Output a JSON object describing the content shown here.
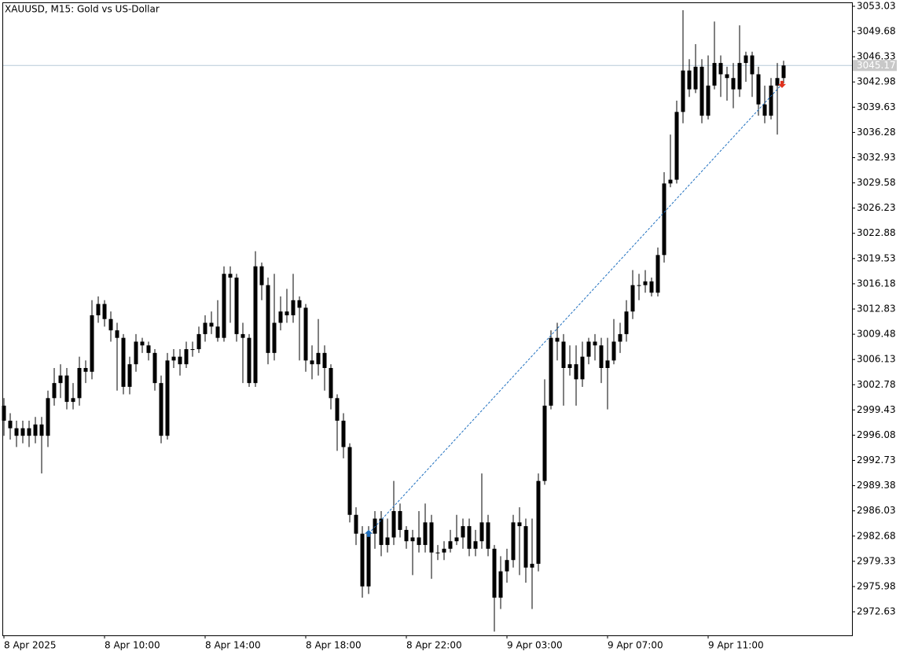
{
  "chart_data": {
    "type": "candlestick",
    "title": "XAUUSD, M15:  Gold vs US-Dollar",
    "color": "#000000",
    "categories": [
      "8 Apr 2025",
      null,
      null,
      null,
      null,
      null,
      null,
      null,
      null,
      null,
      null,
      null,
      null,
      null,
      null,
      null,
      "8 Apr 10:00",
      null,
      null,
      null,
      null,
      null,
      null,
      null,
      null,
      null,
      null,
      null,
      null,
      null,
      null,
      null,
      "8 Apr 14:00",
      null,
      null,
      null,
      null,
      null,
      null,
      null,
      null,
      null,
      null,
      null,
      null,
      null,
      null,
      null,
      "8 Apr 18:00",
      null,
      null,
      null,
      null,
      null,
      null,
      null,
      null,
      null,
      null,
      null,
      null,
      null,
      null,
      null,
      "8 Apr 22:00",
      null,
      null,
      null,
      null,
      null,
      null,
      null,
      null,
      null,
      null,
      null,
      null,
      null,
      null,
      null,
      "9 Apr 03:00",
      null,
      null,
      null,
      null,
      null,
      null,
      null,
      null,
      null,
      null,
      null,
      null,
      null,
      null,
      null,
      "9 Apr 07:00",
      null,
      null,
      null,
      null,
      null,
      null,
      null,
      null,
      null,
      null,
      null,
      null,
      null,
      null,
      null,
      "9 Apr 11:00",
      null,
      null,
      null,
      null,
      null,
      null,
      null,
      null,
      null,
      null,
      null,
      null
    ],
    "open": [
      3000,
      2998,
      2997,
      2996,
      2997,
      2996,
      2997.5,
      2996,
      3001,
      3003,
      3004,
      3000.5,
      3001,
      3005,
      3004.5,
      3012,
      3013.5,
      3011.5,
      3010,
      3009,
      3002.5,
      3005.5,
      3008.5,
      3008,
      3007,
      3003,
      2996,
      3006,
      3006.5,
      3005.5,
      3007.5,
      3007.5,
      3009.5,
      3011,
      3010.5,
      3009,
      3017.5,
      3017,
      3009.5,
      3009,
      3003,
      3018.5,
      3016,
      3007,
      3011,
      3012.5,
      3012,
      3014,
      3013,
      3006,
      3005.5,
      3007,
      3005,
      3001,
      2998,
      2994.5,
      2985.5,
      2983,
      2976,
      2983,
      2985,
      2981.5,
      2982.5,
      2986,
      2983.5,
      2982,
      2982.5,
      2981.5,
      2984.5,
      2980.5,
      2980.5,
      2981,
      2982,
      2982.5,
      2984,
      2981,
      2982,
      2984.5,
      2981,
      2974.5,
      2978,
      2979.5,
      2984.5,
      2984,
      2978.5,
      2979,
      2990,
      3000,
      3009,
      3008.5,
      3005,
      3005.5,
      3003.5,
      3006.5,
      3008.5,
      3008,
      3005,
      3006,
      3008.5,
      3009.5,
      3012.5,
      3016,
      3016,
      3016.5,
      3015,
      3020,
      3029.5,
      3030,
      3039,
      3044.5,
      3042,
      3045,
      3038.5,
      3042.5,
      3045.5,
      3044,
      3043.5,
      3042,
      3045.5,
      3046.5,
      3044,
      3040,
      3038.5,
      3042.5,
      3043.5
    ],
    "high": [
      3001,
      2999,
      2998,
      2998,
      2998,
      2998.5,
      2998.5,
      3002,
      3005,
      3005.5,
      3005,
      3003,
      3006.5,
      3006,
      3014,
      3014.5,
      3014,
      3012.5,
      3011,
      3009.5,
      3006.5,
      3009.5,
      3009,
      3008.5,
      3007.5,
      3004,
      3007,
      3007.5,
      3007.5,
      3008.5,
      3008.5,
      3010.5,
      3012,
      3012.5,
      3014,
      3018.5,
      3018.5,
      3017.5,
      3011,
      3009.5,
      3020.5,
      3019,
      3017,
      3017.5,
      3014.5,
      3015.5,
      3017.5,
      3014.5,
      3013.5,
      3008,
      3011.5,
      3008,
      3005.5,
      3001.5,
      2999,
      2995,
      2986.5,
      2984,
      2984,
      2986,
      2986,
      2985,
      2990,
      2987,
      2984,
      2983.5,
      2986,
      2987,
      2985.5,
      2981.5,
      2982,
      2983.5,
      2985.5,
      2985,
      2985,
      2983.5,
      2991,
      2985.5,
      2981.5,
      2980,
      2981,
      2985.5,
      2986.5,
      2985,
      2985,
      2991,
      3003.5,
      3010,
      3011,
      3009.5,
      3008,
      3008,
      3008.5,
      3009,
      3009.5,
      3009,
      3009,
      3011.5,
      3011,
      3014,
      3018,
      3017.5,
      3018,
      3017,
      3021,
      3031,
      3036,
      3040.5,
      3052.5,
      3046,
      3048,
      3046,
      3046.5,
      3051,
      3046.5,
      3045,
      3045.5,
      3050.5,
      3047,
      3047,
      3045,
      3042.5,
      3043.5,
      3045.5,
      3045.8
    ],
    "low": [
      2996,
      2995.5,
      2994.5,
      2995,
      2994.5,
      2995,
      2991,
      2994.5,
      3000,
      3001,
      2999.5,
      2999.5,
      3000,
      3003,
      3003.5,
      3011,
      3010.5,
      3008.5,
      3002,
      3001.5,
      3001.5,
      3004.5,
      3007,
      3006,
      3002,
      2995,
      2995.5,
      3005,
      3004,
      3005,
      3006.5,
      3007,
      3008.5,
      3009.5,
      3008.5,
      3008.5,
      3011,
      3008.5,
      3003,
      3002.5,
      3002.5,
      3014,
      3005.5,
      3006,
      3010,
      3011,
      3011,
      3006,
      3004.5,
      3003.5,
      3004,
      3002,
      2999.5,
      2994,
      2993,
      2984.5,
      2981.5,
      2974.5,
      2975,
      2981,
      2980,
      2980.5,
      2981.5,
      2982.5,
      2981,
      2977.5,
      2980.5,
      2980.5,
      2977,
      2979.5,
      2979.5,
      2980.5,
      2981.5,
      2981,
      2980,
      2980,
      2981,
      2980,
      2970,
      2973,
      2976.5,
      2978.5,
      2977.5,
      2976.5,
      2973,
      2978,
      2989.5,
      2999.5,
      3006,
      3000,
      3004,
      3000,
      3002.5,
      3005.5,
      3006,
      3003,
      2999.5,
      3005.5,
      3007,
      3008.5,
      3011.5,
      3014,
      3015,
      3014.5,
      3014.5,
      3019,
      3029,
      3029.5,
      3037.5,
      3041,
      3041.5,
      3037.5,
      3038,
      3042,
      3041,
      3040.5,
      3039.5,
      3041,
      3043,
      3041,
      3038.5,
      3037.5,
      3038,
      3036,
      3042.8
    ],
    "close": [
      2998,
      2997,
      2996,
      2997,
      2996,
      2997.5,
      2996,
      3001,
      3003,
      3004,
      3000.5,
      3001,
      3005,
      3004.5,
      3012,
      3013.5,
      3011.5,
      3010,
      3009,
      3002.5,
      3005.5,
      3008.5,
      3008,
      3007,
      3003,
      2996,
      3006,
      3006.5,
      3005.5,
      3007.5,
      3007.5,
      3009.5,
      3011,
      3010.5,
      3009,
      3017.5,
      3017,
      3009.5,
      3009,
      3003,
      3018.5,
      3016,
      3007,
      3011,
      3012.5,
      3012,
      3014,
      3013,
      3006,
      3005.5,
      3007,
      3005,
      3001,
      2998,
      2994.5,
      2985.5,
      2983,
      2976,
      2983,
      2985,
      2981.5,
      2982.5,
      2986,
      2983.5,
      2982,
      2982.5,
      2981.5,
      2984.5,
      2980.5,
      2980.5,
      2981,
      2982,
      2982.5,
      2984,
      2981,
      2982,
      2984.5,
      2981,
      2974.5,
      2978,
      2979.5,
      2984.5,
      2984,
      2978.5,
      2979,
      2990,
      3000,
      3009,
      3008.5,
      3005,
      3005.5,
      3003.5,
      3006.5,
      3008.5,
      3008,
      3005,
      3006,
      3008.5,
      3009.5,
      3012.5,
      3016,
      3016,
      3016.5,
      3015,
      3020,
      3029.5,
      3030,
      3039,
      3044.5,
      3042,
      3045,
      3038.5,
      3042.5,
      3045.5,
      3044,
      3043.5,
      3042,
      3045.5,
      3046.5,
      3044,
      3040,
      3038.5,
      3042.5,
      3043.5,
      3045.17
    ],
    "ylim": [
      2969.5,
      3053.55
    ],
    "yticks": [
      3053.03,
      3049.68,
      3046.33,
      3042.98,
      3039.63,
      3036.28,
      3032.93,
      3029.58,
      3026.23,
      3022.88,
      3019.53,
      3016.18,
      3012.83,
      3009.48,
      3006.13,
      3002.78,
      2999.43,
      2996.08,
      2992.73,
      2989.38,
      2986.03,
      2982.68,
      2979.33,
      2975.98,
      2972.63
    ],
    "current_price": 3045.17,
    "trade": {
      "entry_bar": 58,
      "entry_price": 2983.0,
      "exit_bar": 124,
      "exit_price": 3042.7,
      "entry_color": "#1e6fbf",
      "exit_color": "#e0321e"
    }
  }
}
